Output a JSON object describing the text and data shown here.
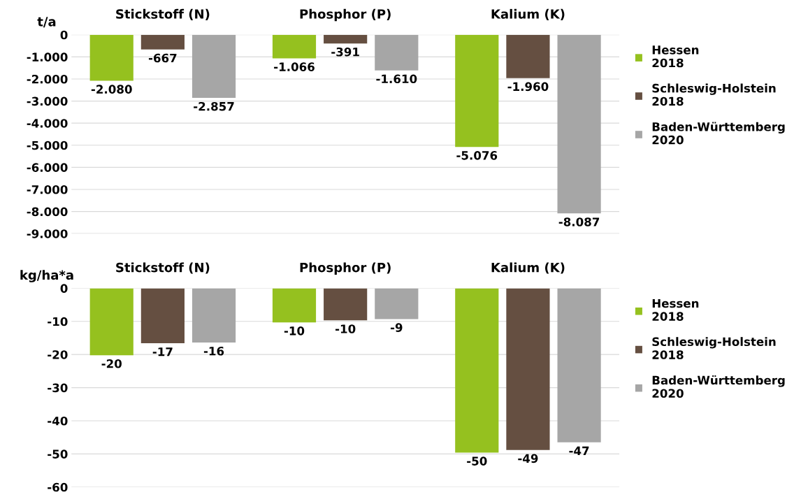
{
  "chart_data": [
    {
      "type": "bar",
      "ylabel": "t/a",
      "categories": [
        "Stickstoff (N)",
        "Phosphor (P)",
        "Kalium (K)"
      ],
      "series": [
        {
          "name": "Hessen\n2018",
          "color": "#95c11f",
          "values": [
            -2080,
            -1066,
            -5076
          ],
          "value_labels": [
            "-2.080",
            "-1.066",
            "-5.076"
          ]
        },
        {
          "name": "Schleswig-Holstein\n2018",
          "color": "#654f41",
          "values": [
            -667,
            -391,
            -1960
          ],
          "value_labels": [
            "-667",
            "-391",
            "-1.960"
          ]
        },
        {
          "name": "Baden-Württemberg\n2020",
          "color": "#a6a6a6",
          "values": [
            -2857,
            -1610,
            -8087
          ],
          "value_labels": [
            "-2.857",
            "-1.610",
            "-8.087"
          ]
        }
      ],
      "ylim": [
        -9000,
        0
      ],
      "yticks": [
        0,
        {
          "value": -1000,
          "label": "-1.000"
        },
        {
          "value": -2000,
          "label": "-2.000"
        },
        {
          "value": -3000,
          "label": "-3.000"
        },
        {
          "value": -4000,
          "label": "-4.000"
        },
        {
          "value": -5000,
          "label": "-5.000"
        },
        {
          "value": -6000,
          "label": "-6.000"
        },
        {
          "value": -7000,
          "label": "-7.000"
        },
        {
          "value": -8000,
          "label": "-8.000"
        },
        {
          "value": -9000,
          "label": "-9.000"
        }
      ],
      "grid": "y",
      "legend": "right"
    },
    {
      "type": "bar",
      "ylabel": "kg/ha*a",
      "categories": [
        "Stickstoff (N)",
        "Phosphor (P)",
        "Kalium (K)"
      ],
      "series": [
        {
          "name": "Hessen\n2018",
          "color": "#95c11f",
          "values": [
            -20.2,
            -10.3,
            -49.6
          ],
          "value_labels": [
            "-20",
            "-10",
            "-50"
          ]
        },
        {
          "name": "Schleswig-Holstein\n2018",
          "color": "#654f41",
          "values": [
            -16.6,
            -9.7,
            -48.8
          ],
          "value_labels": [
            "-17",
            "-10",
            "-49"
          ]
        },
        {
          "name": "Baden-Württemberg\n2020",
          "color": "#a6a6a6",
          "values": [
            -16.4,
            -9.3,
            -46.5
          ],
          "value_labels": [
            "-16",
            "-9",
            "-47"
          ]
        }
      ],
      "ylim": [
        -60,
        0
      ],
      "yticks": [
        0,
        -10,
        -20,
        -30,
        -40,
        -50,
        -60
      ],
      "grid": "y",
      "legend": "right"
    }
  ]
}
